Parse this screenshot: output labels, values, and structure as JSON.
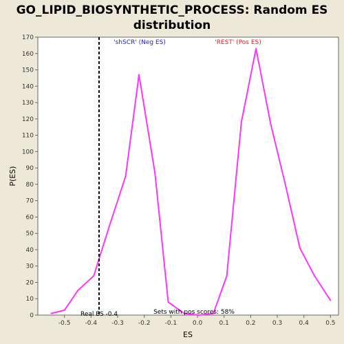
{
  "chart_data": {
    "type": "line",
    "title": "GO_LIPID_BIOSYNTHETIC_PROCESS: Random ES\ndistribution",
    "xlabel": "ES",
    "ylabel": "P(ES)",
    "xlim": [
      -0.6,
      0.53
    ],
    "ylim": [
      0,
      170
    ],
    "xticks": [
      "-0.5",
      "-0.4",
      "-0.3",
      "-0.2",
      "-0.1",
      "0.0",
      "0.1",
      "0.2",
      "0.3",
      "0.4",
      "0.5"
    ],
    "xtick_values": [
      -0.5,
      -0.4,
      -0.3,
      -0.2,
      -0.1,
      0.0,
      0.1,
      0.2,
      0.3,
      0.4,
      0.5
    ],
    "yticks": [
      "0",
      "10",
      "20",
      "30",
      "40",
      "50",
      "60",
      "70",
      "80",
      "90",
      "100",
      "110",
      "120",
      "130",
      "140",
      "150",
      "160",
      "170"
    ],
    "ytick_values": [
      0,
      10,
      20,
      30,
      40,
      50,
      60,
      70,
      80,
      90,
      100,
      110,
      120,
      130,
      140,
      150,
      160,
      170
    ],
    "grid": false,
    "line_color": "#ff33ff",
    "series": [
      {
        "x": [
          -0.55,
          -0.5,
          -0.45,
          -0.39,
          -0.33,
          -0.27,
          -0.22,
          -0.16,
          -0.11,
          -0.05,
          0.005,
          0.06,
          0.11,
          0.165,
          0.22,
          0.275,
          0.33,
          0.385,
          0.44,
          0.5
        ],
        "y": [
          1,
          3,
          15,
          24,
          55,
          85,
          147,
          87,
          8,
          1,
          0,
          1,
          24,
          118,
          163,
          117,
          80,
          41,
          24,
          9
        ]
      }
    ],
    "real_es": {
      "value": -0.37,
      "label": "Real ES -0.4",
      "color": "#000000"
    },
    "annotations": {
      "neg": {
        "text": "'shSCR' (Neg ES)",
        "color": "#2222cc"
      },
      "pos": {
        "text": "'REST' (Pos ES)",
        "color": "#dd2222"
      },
      "pos_scores": {
        "text": "Sets with pos scores: 58%",
        "color": "#000000"
      }
    }
  }
}
